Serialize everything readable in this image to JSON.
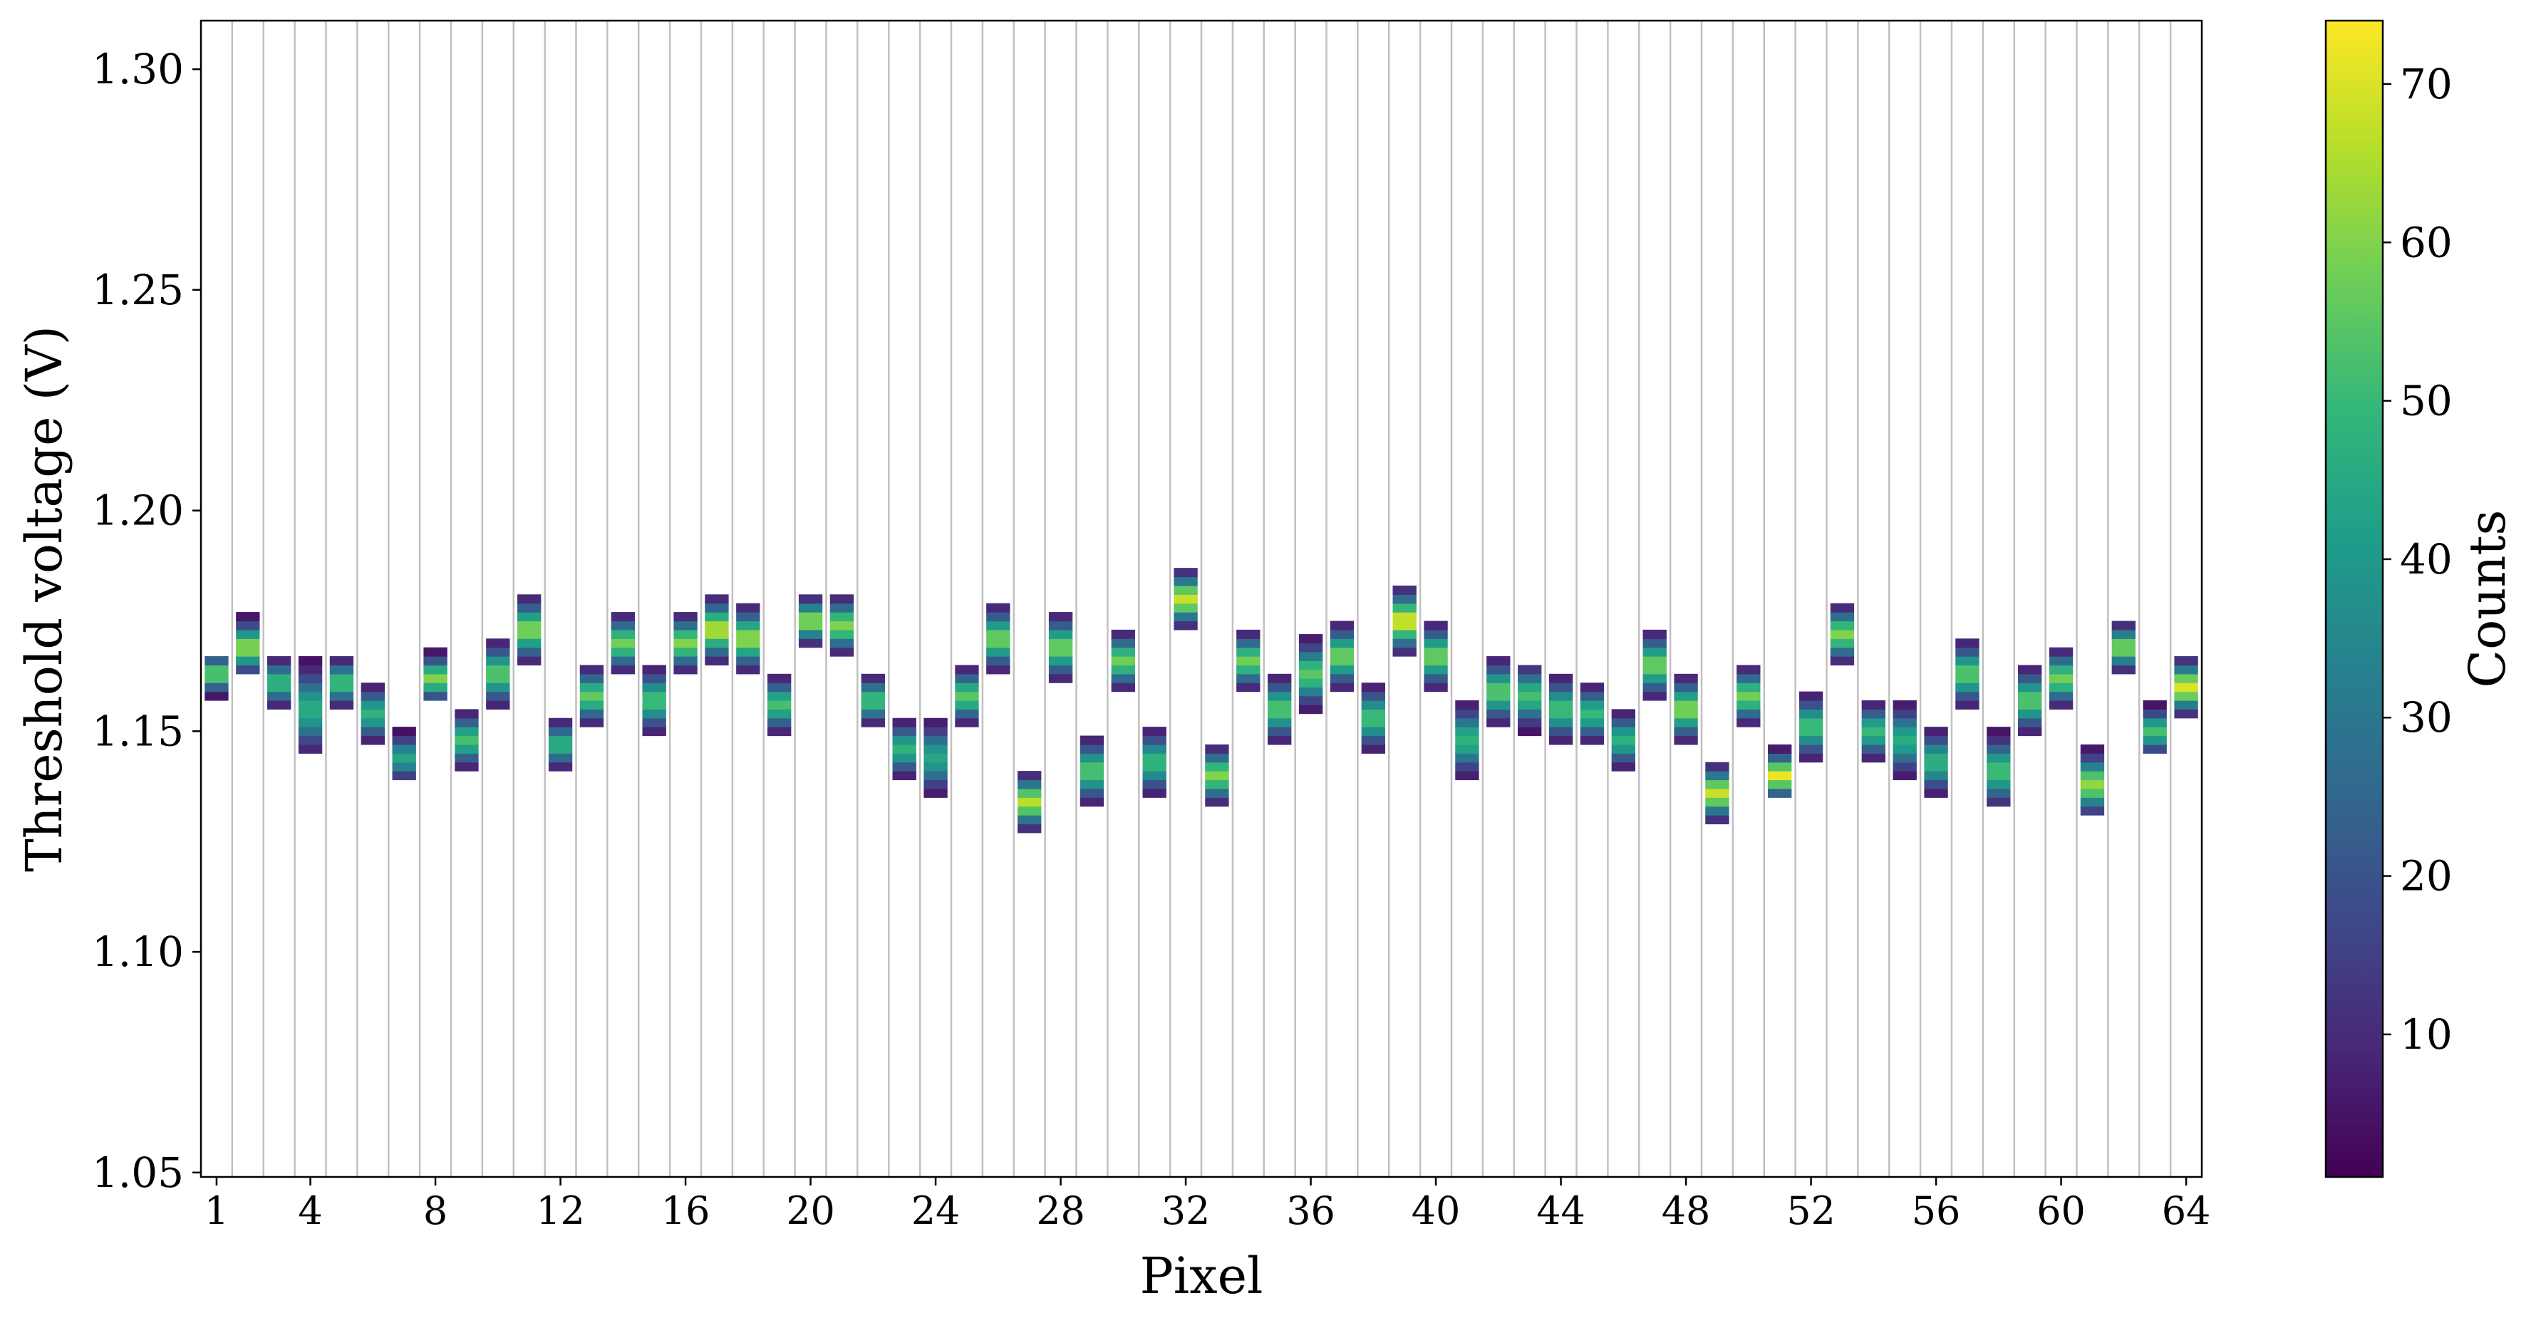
{
  "chart_data": {
    "type": "heatmap",
    "xlabel": "Pixel",
    "ylabel": "Threshold voltage (V)",
    "xlim": [
      0.5,
      64.5
    ],
    "ylim": [
      1.049,
      1.311
    ],
    "x_ticks": [
      1,
      4,
      8,
      12,
      16,
      20,
      24,
      28,
      32,
      36,
      40,
      44,
      48,
      52,
      56,
      60,
      64
    ],
    "y_ticks": [
      1.05,
      1.1,
      1.15,
      1.2,
      1.25,
      1.3
    ],
    "y_tick_labels": [
      "1.05",
      "1.10",
      "1.15",
      "1.20",
      "1.25",
      "1.30"
    ],
    "bin_width_v": 0.002,
    "colorbar": {
      "label": "Counts",
      "colormap": "viridis",
      "range": [
        1,
        74
      ],
      "ticks": [
        10,
        20,
        30,
        40,
        50,
        60,
        70
      ],
      "tick_labels": [
        "10",
        "20",
        "30",
        "40",
        "50",
        "60",
        "70"
      ]
    },
    "grid": "vertical lines between pixels",
    "colors": {
      "grid": "#c0c0c0",
      "axes": "#000000"
    },
    "pixels": [
      1,
      2,
      3,
      4,
      5,
      6,
      7,
      8,
      9,
      10,
      11,
      12,
      13,
      14,
      15,
      16,
      17,
      18,
      19,
      20,
      21,
      22,
      23,
      24,
      25,
      26,
      27,
      28,
      29,
      30,
      31,
      32,
      33,
      34,
      35,
      36,
      37,
      38,
      39,
      40,
      41,
      42,
      43,
      44,
      45,
      46,
      47,
      48,
      49,
      50,
      51,
      52,
      53,
      54,
      55,
      56,
      57,
      58,
      59,
      60,
      61,
      62,
      63,
      64
    ],
    "center_v": [
      1.163,
      1.169,
      1.161,
      1.155,
      1.161,
      1.154,
      1.144,
      1.162,
      1.148,
      1.163,
      1.173,
      1.147,
      1.158,
      1.17,
      1.157,
      1.17,
      1.173,
      1.171,
      1.156,
      1.175,
      1.174,
      1.157,
      1.146,
      1.144,
      1.158,
      1.171,
      1.134,
      1.169,
      1.141,
      1.166,
      1.143,
      1.18,
      1.14,
      1.166,
      1.155,
      1.163,
      1.167,
      1.153,
      1.175,
      1.167,
      1.148,
      1.159,
      1.158,
      1.155,
      1.154,
      1.148,
      1.165,
      1.155,
      1.136,
      1.158,
      1.14,
      1.151,
      1.172,
      1.15,
      1.148,
      1.143,
      1.163,
      1.141,
      1.157,
      1.162,
      1.138,
      1.169,
      1.15,
      1.16
    ],
    "low_v": [
      1.157,
      1.163,
      1.155,
      1.145,
      1.155,
      1.147,
      1.139,
      1.157,
      1.141,
      1.155,
      1.165,
      1.141,
      1.151,
      1.163,
      1.149,
      1.163,
      1.165,
      1.163,
      1.149,
      1.169,
      1.167,
      1.151,
      1.139,
      1.135,
      1.151,
      1.163,
      1.127,
      1.161,
      1.133,
      1.159,
      1.135,
      1.173,
      1.133,
      1.159,
      1.147,
      1.154,
      1.159,
      1.145,
      1.167,
      1.159,
      1.139,
      1.151,
      1.149,
      1.147,
      1.147,
      1.141,
      1.157,
      1.147,
      1.129,
      1.151,
      1.135,
      1.143,
      1.165,
      1.143,
      1.139,
      1.135,
      1.155,
      1.133,
      1.149,
      1.155,
      1.131,
      1.163,
      1.145,
      1.153
    ],
    "high_v": [
      1.167,
      1.177,
      1.167,
      1.167,
      1.167,
      1.161,
      1.151,
      1.169,
      1.155,
      1.171,
      1.181,
      1.153,
      1.165,
      1.177,
      1.165,
      1.177,
      1.181,
      1.179,
      1.163,
      1.181,
      1.181,
      1.163,
      1.153,
      1.153,
      1.165,
      1.179,
      1.141,
      1.177,
      1.149,
      1.173,
      1.151,
      1.187,
      1.147,
      1.173,
      1.163,
      1.171,
      1.175,
      1.161,
      1.183,
      1.175,
      1.157,
      1.167,
      1.165,
      1.163,
      1.161,
      1.155,
      1.173,
      1.163,
      1.143,
      1.165,
      1.147,
      1.159,
      1.179,
      1.157,
      1.157,
      1.151,
      1.171,
      1.151,
      1.165,
      1.169,
      1.147,
      1.175,
      1.157,
      1.167
    ],
    "peak_counts": [
      58,
      62,
      50,
      46,
      52,
      48,
      44,
      60,
      52,
      55,
      60,
      48,
      56,
      58,
      52,
      60,
      66,
      62,
      52,
      62,
      60,
      52,
      48,
      44,
      55,
      58,
      66,
      58,
      54,
      58,
      50,
      68,
      60,
      58,
      54,
      55,
      58,
      52,
      70,
      58,
      48,
      55,
      52,
      52,
      50,
      48,
      58,
      60,
      68,
      58,
      72,
      52,
      60,
      50,
      46,
      48,
      55,
      52,
      55,
      58,
      62,
      60,
      52,
      70
    ]
  }
}
